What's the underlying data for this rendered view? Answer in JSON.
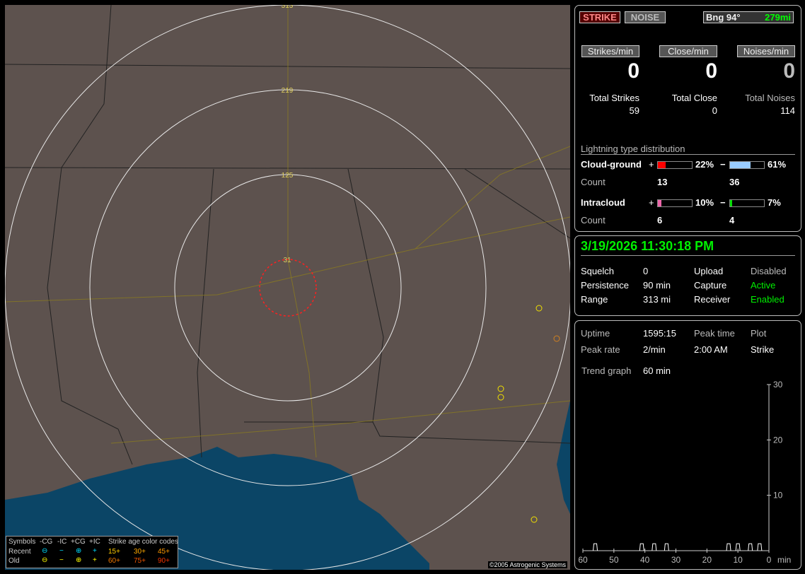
{
  "map": {
    "range_labels": [
      "31",
      "125",
      "219",
      "313"
    ],
    "copyright": "©2005 Astrogenic Systems",
    "land_color": "#5d524e",
    "water_color": "#0b4566"
  },
  "legend": {
    "symbols": "Symbols",
    "cols": [
      "-CG",
      "-IC",
      "+CG",
      "+IC"
    ],
    "recent": "Recent",
    "old": "Old",
    "recent_syms": [
      "⊖",
      "−",
      "⊕",
      "+"
    ],
    "old_syms": [
      "⊖",
      "−",
      "⊕",
      "+"
    ],
    "age_title": "Strike age color codes",
    "recent_ages": [
      "15+",
      "30+",
      "45+"
    ],
    "old_ages": [
      "60+",
      "75+",
      "90+"
    ]
  },
  "status": {
    "strike": "STRIKE",
    "noise": "NOISE",
    "bearing": "Bng 94°",
    "distance": "279mi"
  },
  "rates": {
    "strikes_label": "Strikes/min",
    "close_label": "Close/min",
    "noises_label": "Noises/min",
    "strikes": "0",
    "close": "0",
    "noises": "0"
  },
  "totals": {
    "strikes_label": "Total Strikes",
    "close_label": "Total Close",
    "noises_label": "Total Noises",
    "strikes": "59",
    "close": "0",
    "noises": "114"
  },
  "distribution": {
    "title": "Lightning type distribution",
    "cg_label": "Cloud-ground",
    "ic_label": "Intracloud",
    "count_label": "Count",
    "plus": "+",
    "minus": "−",
    "cg_pos_pct": "22%",
    "cg_neg_pct": "61%",
    "ic_pos_pct": "10%",
    "ic_neg_pct": "7%",
    "cg_pos_count": "13",
    "cg_neg_count": "36",
    "ic_pos_count": "6",
    "ic_neg_count": "4",
    "cg_pos": 22,
    "cg_neg": 61,
    "ic_pos": 10,
    "ic_neg": 7,
    "colors": {
      "cg_pos": "#ff0000",
      "cg_neg": "#99ccff",
      "ic_pos": "#ee66aa",
      "ic_neg": "#00dd00"
    }
  },
  "clock": "3/19/2026 11:30:18 PM",
  "settings": {
    "squelch_label": "Squelch",
    "squelch": "0",
    "persistence_label": "Persistence",
    "persistence": "90 min",
    "range_label": "Range",
    "range": "313 mi",
    "upload_label": "Upload",
    "upload": "Disabled",
    "capture_label": "Capture",
    "capture": "Active",
    "receiver_label": "Receiver",
    "receiver": "Enabled"
  },
  "stats": {
    "uptime_label": "Uptime",
    "uptime": "1595:15",
    "peak_time_label": "Peak time",
    "plot_label": "Plot",
    "peak_rate_label": "Peak rate",
    "peak_rate": "2/min",
    "peak_time": "2:00 AM",
    "plot": "Strike",
    "trend_label": "Trend graph",
    "trend": "60 min"
  },
  "chart_data": {
    "type": "line",
    "x_ticks": [
      "60",
      "50",
      "40",
      "30",
      "20",
      "10",
      "0"
    ],
    "x_unit": "min",
    "y_ticks": [
      "30",
      "20",
      "10"
    ],
    "ylim": [
      0,
      30
    ],
    "xlim": [
      60,
      0
    ],
    "points": [
      {
        "x": 56,
        "y": 1
      },
      {
        "x": 41,
        "y": 1
      },
      {
        "x": 37,
        "y": 1
      },
      {
        "x": 33,
        "y": 1
      },
      {
        "x": 13,
        "y": 1
      },
      {
        "x": 10,
        "y": 1
      },
      {
        "x": 6,
        "y": 1
      },
      {
        "x": 3,
        "y": 1
      }
    ]
  }
}
